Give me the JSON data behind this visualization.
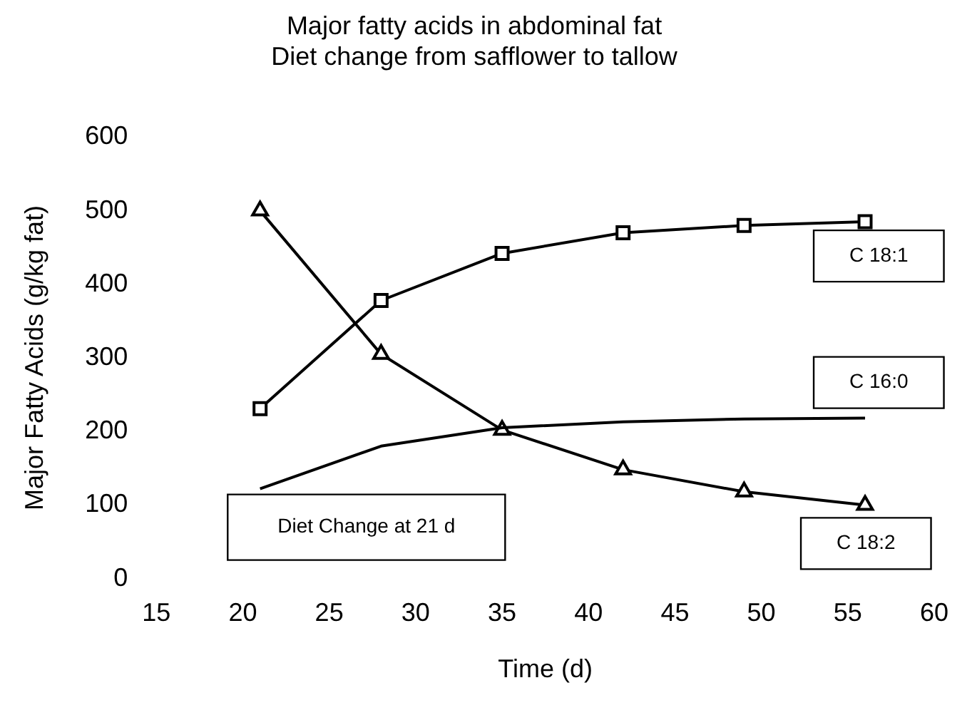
{
  "chart_data": {
    "type": "line",
    "title": "Major fatty acids in abdominal fat\nDiet change from safflower to tallow",
    "xlabel": "Time (d)",
    "ylabel": "Major Fatty Acids (g/kg fat)",
    "x": [
      21,
      28,
      35,
      42,
      49,
      56
    ],
    "series": [
      {
        "name": "C 18:1",
        "color": "#000000",
        "marker": "square",
        "values": [
          231,
          378,
          442,
          470,
          480,
          485
        ]
      },
      {
        "name": "C 16:0",
        "color": "#000000",
        "marker": "none",
        "values": [
          122,
          180,
          205,
          213,
          217,
          218
        ]
      },
      {
        "name": "C 18:2",
        "color": "#000000",
        "marker": "triangle",
        "values": [
          500,
          305,
          202,
          148,
          118,
          100
        ]
      }
    ],
    "annotations": [
      "Diet Change at 21 d"
    ],
    "xlim": [
      15,
      60
    ],
    "xticks": [
      15,
      20,
      25,
      30,
      35,
      40,
      45,
      50,
      55,
      60
    ],
    "ylim": [
      0,
      600
    ],
    "yticks": [
      0,
      100,
      200,
      300,
      400,
      500,
      600
    ],
    "grid": false,
    "legend": false,
    "line_style": "solid"
  }
}
